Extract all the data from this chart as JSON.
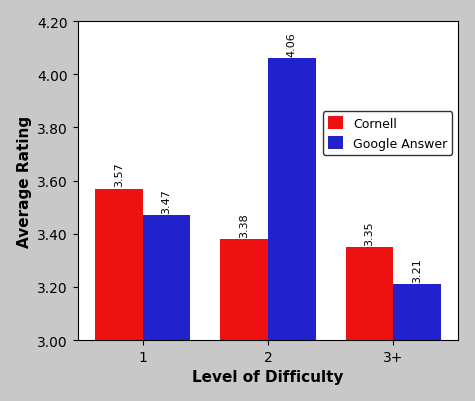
{
  "categories": [
    "1",
    "2",
    "3+"
  ],
  "cornell_values": [
    3.57,
    3.38,
    3.35
  ],
  "google_values": [
    3.47,
    4.06,
    3.21
  ],
  "cornell_color": "#EE1111",
  "google_color": "#2222CC",
  "xlabel": "Level of Difficulty",
  "ylabel": "Average Rating",
  "ylim": [
    3.0,
    4.2
  ],
  "yticks": [
    3.0,
    3.2,
    3.4,
    3.6,
    3.8,
    4.0,
    4.2
  ],
  "legend_labels": [
    "Cornell",
    "Google Answer"
  ],
  "bar_width": 0.38,
  "label_fontsize": 8,
  "axis_label_fontsize": 11,
  "tick_fontsize": 10,
  "background_color": "#ffffff",
  "outer_bg": "#c8c8c8"
}
